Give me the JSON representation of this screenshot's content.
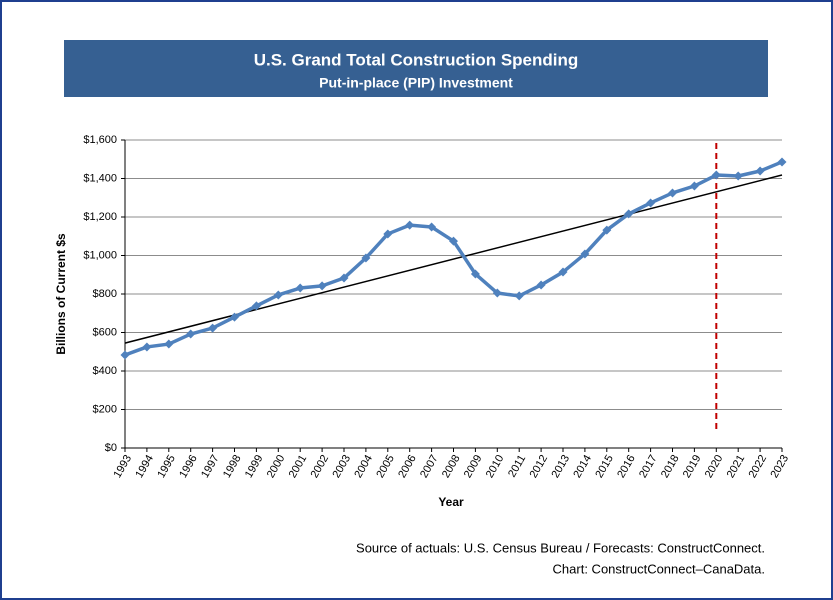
{
  "chart_data": {
    "type": "line",
    "title": "U.S. Grand Total Construction Spending",
    "subtitle": "Put-in-place (PIP) Investment",
    "y_label": "Billions of Current $s",
    "x_label": "Year",
    "source": "Source of actuals: U.S. Census Bureau / Forecasts: ConstructConnect.",
    "credit": "Chart: ConstructConnect–CanaData.",
    "categories": [
      "1993",
      "1994",
      "1995",
      "1996",
      "1997",
      "1998",
      "1999",
      "2000",
      "2001",
      "2002",
      "2003",
      "2004",
      "2005",
      "2006",
      "2007",
      "2008",
      "2009",
      "2010",
      "2011",
      "2012",
      "2013",
      "2014",
      "2015",
      "2016",
      "2017",
      "2018",
      "2019",
      "2020",
      "2021",
      "2022",
      "2023"
    ],
    "values": [
      483,
      525,
      540,
      592,
      623,
      680,
      738,
      795,
      831,
      842,
      883,
      987,
      1112,
      1158,
      1148,
      1075,
      904,
      805,
      790,
      847,
      914,
      1008,
      1132,
      1216,
      1273,
      1325,
      1361,
      1418,
      1413,
      1439,
      1486
    ],
    "color": "#4f81bd",
    "trend": {
      "start": 545,
      "end": 1418,
      "color": "#000000"
    },
    "vline": {
      "category": "2020",
      "color": "#c00000"
    },
    "ylim": [
      0,
      1600
    ],
    "yticks": [
      {
        "value": 0,
        "label": "$0"
      },
      {
        "value": 200,
        "label": "$200"
      },
      {
        "value": 400,
        "label": "$400"
      },
      {
        "value": 600,
        "label": "$600"
      },
      {
        "value": 800,
        "label": "$800"
      },
      {
        "value": 1000,
        "label": "$1,000"
      },
      {
        "value": 1200,
        "label": "$1,200"
      },
      {
        "value": 1400,
        "label": "$1,400"
      },
      {
        "value": 1600,
        "label": "$1,600"
      }
    ],
    "grid": true
  }
}
